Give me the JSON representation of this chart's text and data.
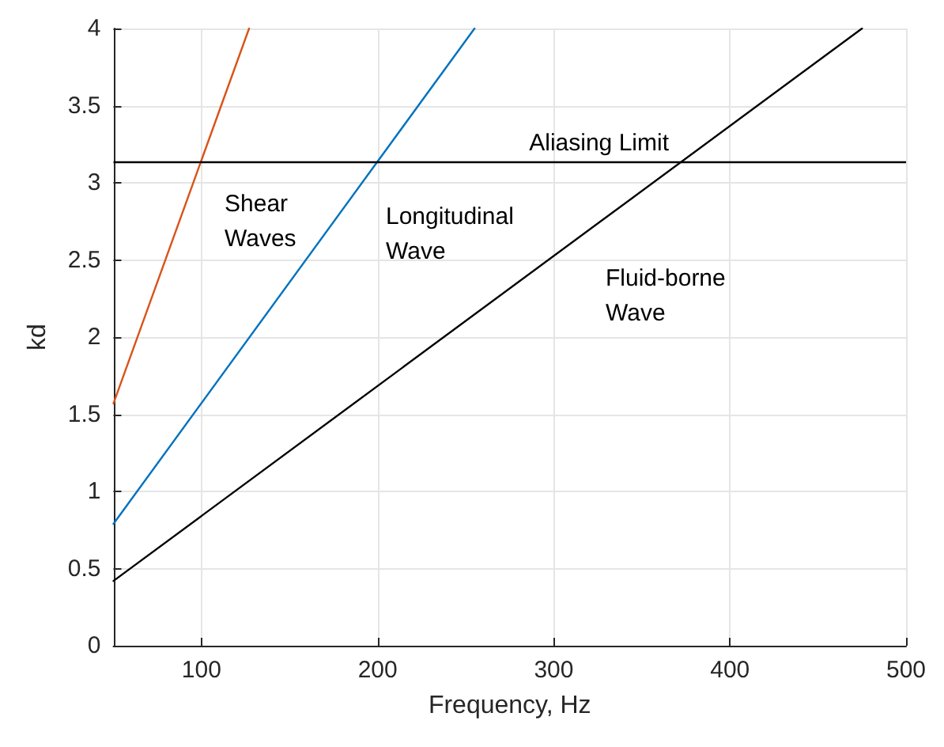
{
  "chart_data": {
    "type": "line",
    "xlabel": "Frequency, Hz",
    "ylabel": "kd",
    "xlim": [
      50,
      500
    ],
    "xticks": [
      100,
      200,
      300,
      400,
      500
    ],
    "ylim": [
      0,
      4
    ],
    "yticks": [
      0,
      0.5,
      1,
      1.5,
      2,
      2.5,
      3,
      3.5,
      4
    ],
    "grid": true,
    "marker": "none",
    "line_style": "solid",
    "series": [
      {
        "color": "#d95319",
        "x": [
          50,
          127
        ],
        "values": [
          1.57,
          4
        ]
      },
      {
        "color": "#0072bd",
        "x": [
          50,
          255
        ],
        "values": [
          0.79,
          4
        ]
      },
      {
        "color": "#000000",
        "x": [
          50,
          475
        ],
        "values": [
          0.42,
          4
        ]
      }
    ],
    "ref_lines": [
      {
        "axis": "y",
        "value": 3.14,
        "label": "Aliasing Limit",
        "color": "#000000"
      }
    ],
    "annotations": [
      "Shear\nWaves",
      "Longitudinal\nWave",
      "Fluid-borne\nWave"
    ]
  }
}
